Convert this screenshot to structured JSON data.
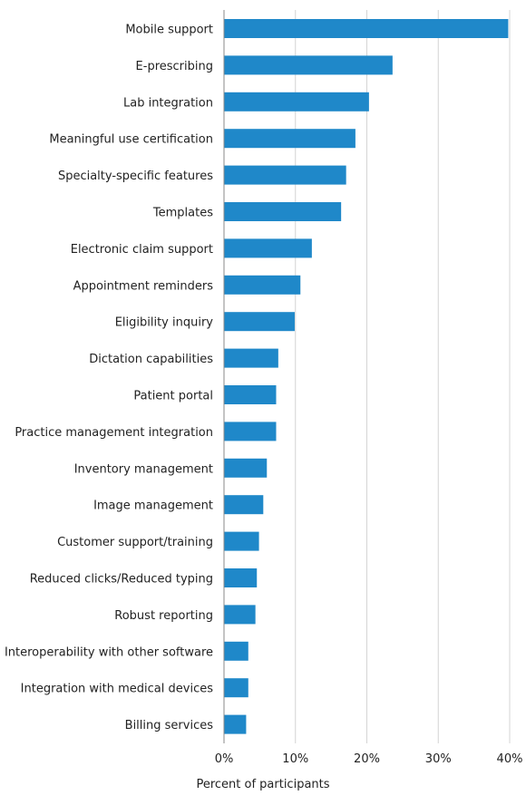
{
  "chart_data": {
    "type": "bar",
    "orientation": "horizontal",
    "title": "",
    "xlabel": "Percent of participants",
    "ylabel": "",
    "xlim": [
      0,
      40
    ],
    "x_ticks": [
      0,
      10,
      20,
      30,
      40
    ],
    "x_tick_labels": [
      "0%",
      "10%",
      "20%",
      "30%",
      "40%"
    ],
    "grid": true,
    "bar_color": "#1f88c9",
    "categories": [
      "Mobile support",
      "E-prescribing",
      "Lab integration",
      "Meaningful use certification",
      "Specialty-specific features",
      "Templates",
      "Electronic claim support",
      "Appointment reminders",
      "Eligibility inquiry",
      "Dictation capabilities",
      "Patient portal",
      "Practice management integration",
      "Inventory management",
      "Image management",
      "Customer support/training",
      "Reduced clicks/Reduced typing",
      "Robust reporting",
      "Interoperability with other software",
      "Integration with medical devices",
      "Billing services"
    ],
    "values": [
      39.8,
      23.6,
      20.3,
      18.4,
      17.1,
      16.4,
      12.3,
      10.7,
      9.9,
      7.6,
      7.3,
      7.3,
      6.0,
      5.5,
      4.9,
      4.6,
      4.4,
      3.4,
      3.4,
      3.1
    ]
  }
}
